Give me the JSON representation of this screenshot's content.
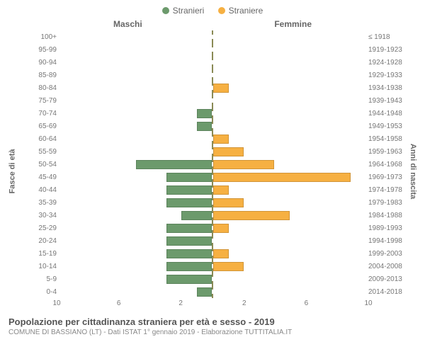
{
  "legend": {
    "male_label": "Stranieri",
    "female_label": "Straniere"
  },
  "headers": {
    "left": "Maschi",
    "right": "Femmine"
  },
  "y_axis_left_title": "Fasce di età",
  "y_axis_right_title": "Anni di nascita",
  "colors": {
    "male": "#6c9a6c",
    "female": "#f6b042",
    "divider": "#8a8a55",
    "text": "#666666",
    "background": "#ffffff"
  },
  "x_axis": {
    "max": 10,
    "ticks_left": [
      10,
      6,
      2
    ],
    "ticks_right": [
      2,
      6,
      10
    ]
  },
  "rows": [
    {
      "age": "100+",
      "birth": "≤ 1918",
      "m": 0,
      "f": 0
    },
    {
      "age": "95-99",
      "birth": "1919-1923",
      "m": 0,
      "f": 0
    },
    {
      "age": "90-94",
      "birth": "1924-1928",
      "m": 0,
      "f": 0
    },
    {
      "age": "85-89",
      "birth": "1929-1933",
      "m": 0,
      "f": 0
    },
    {
      "age": "80-84",
      "birth": "1934-1938",
      "m": 0,
      "f": 1
    },
    {
      "age": "75-79",
      "birth": "1939-1943",
      "m": 0,
      "f": 0
    },
    {
      "age": "70-74",
      "birth": "1944-1948",
      "m": 1,
      "f": 0
    },
    {
      "age": "65-69",
      "birth": "1949-1953",
      "m": 1,
      "f": 0
    },
    {
      "age": "60-64",
      "birth": "1954-1958",
      "m": 0,
      "f": 1
    },
    {
      "age": "55-59",
      "birth": "1959-1963",
      "m": 0,
      "f": 2
    },
    {
      "age": "50-54",
      "birth": "1964-1968",
      "m": 5,
      "f": 4
    },
    {
      "age": "45-49",
      "birth": "1969-1973",
      "m": 3,
      "f": 9
    },
    {
      "age": "40-44",
      "birth": "1974-1978",
      "m": 3,
      "f": 1
    },
    {
      "age": "35-39",
      "birth": "1979-1983",
      "m": 3,
      "f": 2
    },
    {
      "age": "30-34",
      "birth": "1984-1988",
      "m": 2,
      "f": 5
    },
    {
      "age": "25-29",
      "birth": "1989-1993",
      "m": 3,
      "f": 1
    },
    {
      "age": "20-24",
      "birth": "1994-1998",
      "m": 3,
      "f": 0
    },
    {
      "age": "15-19",
      "birth": "1999-2003",
      "m": 3,
      "f": 1
    },
    {
      "age": "10-14",
      "birth": "2004-2008",
      "m": 3,
      "f": 2
    },
    {
      "age": "5-9",
      "birth": "2009-2013",
      "m": 3,
      "f": 0
    },
    {
      "age": "0-4",
      "birth": "2014-2018",
      "m": 1,
      "f": 0
    }
  ],
  "footer": {
    "title": "Popolazione per cittadinanza straniera per età e sesso - 2019",
    "subtitle": "COMUNE DI BASSIANO (LT) - Dati ISTAT 1° gennaio 2019 - Elaborazione TUTTITALIA.IT"
  }
}
